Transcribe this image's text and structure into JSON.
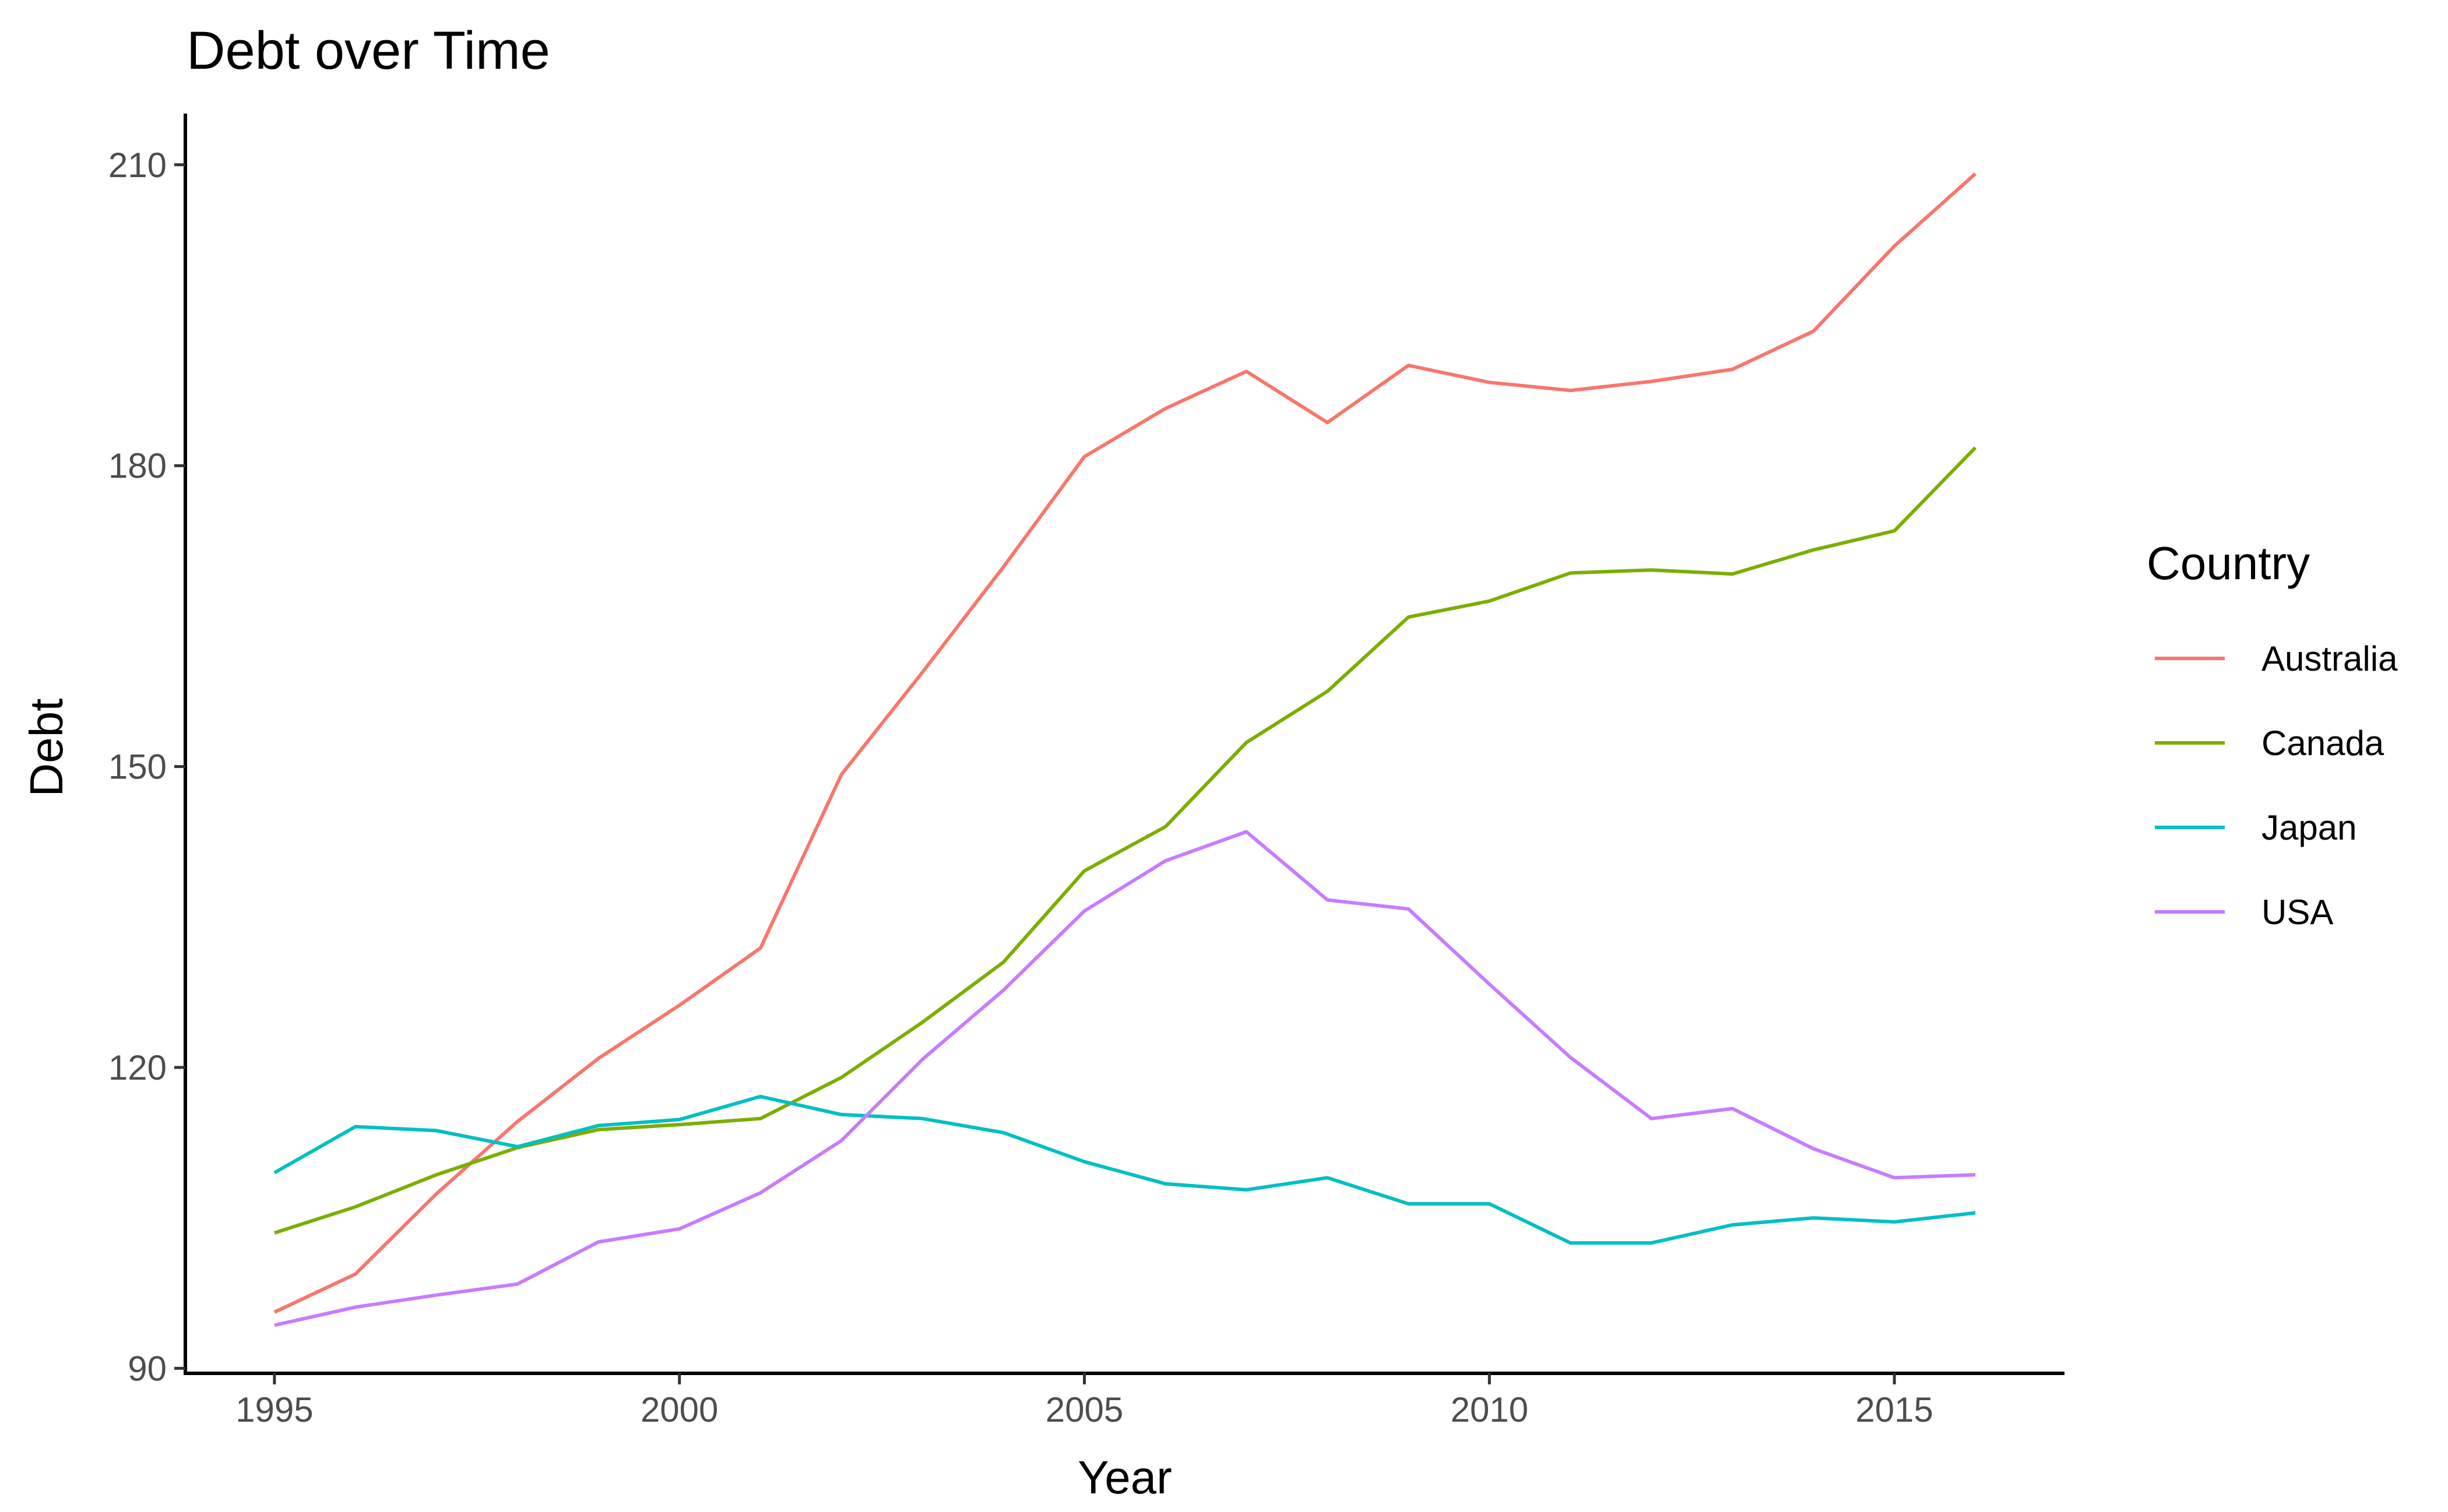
{
  "chart_data": {
    "type": "line",
    "title": "Debt over Time",
    "xlabel": "Year",
    "ylabel": "Debt",
    "xlim": [
      1993.9,
      2017.1
    ],
    "ylim": [
      89.5,
      215.1
    ],
    "x_ticks": [
      1995,
      2000,
      2005,
      2010,
      2015
    ],
    "y_ticks": [
      90,
      120,
      150,
      180,
      210
    ],
    "grid": false,
    "legend": {
      "title": "Country",
      "position": "right"
    },
    "x": [
      1995,
      1996,
      1997,
      1998,
      1999,
      2000,
      2001,
      2002,
      2003,
      2004,
      2005,
      2006,
      2007,
      2008,
      2009,
      2010,
      2011,
      2012,
      2013,
      2014,
      2015,
      2016
    ],
    "series": [
      {
        "name": "Australia",
        "color": "#F8766D",
        "values": [
          95.6,
          99.4,
          107.4,
          114.6,
          120.9,
          126.2,
          131.9,
          149.2,
          159.4,
          169.9,
          180.9,
          185.7,
          189.4,
          184.3,
          190.0,
          188.3,
          187.5,
          188.4,
          189.6,
          193.4,
          201.9,
          209.1
        ]
      },
      {
        "name": "Canada",
        "color": "#7CAE00",
        "values": [
          103.5,
          106.1,
          109.3,
          112.0,
          113.8,
          114.3,
          114.9,
          119.0,
          124.5,
          130.5,
          139.6,
          144.0,
          152.4,
          157.5,
          164.9,
          166.5,
          169.3,
          169.6,
          169.2,
          171.6,
          173.5,
          181.8
        ]
      },
      {
        "name": "Japan",
        "color": "#00BFC4",
        "values": [
          109.5,
          114.1,
          113.7,
          112.1,
          114.2,
          114.8,
          117.1,
          115.3,
          114.9,
          113.5,
          110.6,
          108.4,
          107.8,
          109.0,
          106.4,
          106.4,
          102.5,
          102.5,
          104.3,
          105.0,
          104.6,
          105.5
        ]
      },
      {
        "name": "USA",
        "color": "#C77CFF",
        "values": [
          94.3,
          96.1,
          97.3,
          98.4,
          102.6,
          103.9,
          107.5,
          112.7,
          120.8,
          127.7,
          135.6,
          140.6,
          143.5,
          136.7,
          135.8,
          128.3,
          121.0,
          114.9,
          115.9,
          111.9,
          109.0,
          109.3
        ]
      }
    ]
  }
}
